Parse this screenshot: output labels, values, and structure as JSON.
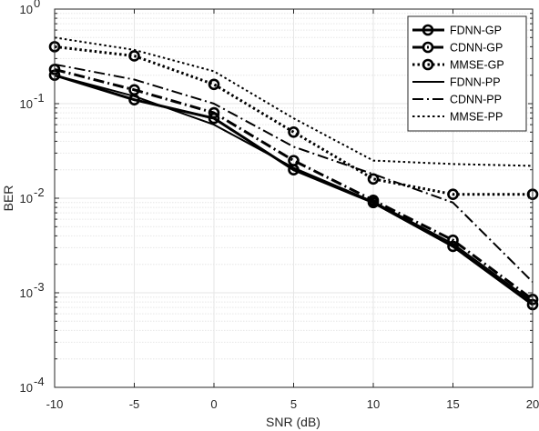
{
  "chart_data": {
    "type": "line",
    "xlabel": "SNR (dB)",
    "ylabel": "BER",
    "yscale": "log",
    "xlim": [
      -10,
      20
    ],
    "ylim": [
      0.0001,
      1
    ],
    "grid": true,
    "legend_placement": "top-right",
    "x": [
      -10,
      -5,
      0,
      5,
      10,
      15,
      20
    ],
    "x_tick_labels": [
      "-10",
      "-5",
      "0",
      "5",
      "10",
      "15",
      "20"
    ],
    "y_ticks": [
      {
        "mantissa": "10",
        "exponent": "0"
      },
      {
        "mantissa": "10",
        "exponent": "-1"
      },
      {
        "mantissa": "10",
        "exponent": "-2"
      },
      {
        "mantissa": "10",
        "exponent": "-3"
      },
      {
        "mantissa": "10",
        "exponent": "-4"
      }
    ],
    "series": [
      {
        "name": "FDNN-GP",
        "style": "solid",
        "width": 3,
        "marker": "circle",
        "values": [
          0.2,
          0.11,
          0.07,
          0.02,
          0.009,
          0.0031,
          0.00075
        ]
      },
      {
        "name": "CDNN-GP",
        "style": "dashdot",
        "width": 3,
        "marker": "circle",
        "values": [
          0.23,
          0.14,
          0.08,
          0.025,
          0.0095,
          0.0036,
          0.00085
        ]
      },
      {
        "name": "MMSE-GP",
        "style": "dotted",
        "width": 3,
        "marker": "circle",
        "values": [
          0.4,
          0.32,
          0.16,
          0.05,
          0.016,
          0.011,
          0.011
        ]
      },
      {
        "name": "FDNN-PP",
        "style": "solid",
        "width": 2,
        "marker": "none",
        "values": [
          0.2,
          0.12,
          0.06,
          0.021,
          0.0092,
          0.0033,
          0.0008
        ]
      },
      {
        "name": "CDNN-PP",
        "style": "dashdot",
        "width": 2,
        "marker": "none",
        "values": [
          0.26,
          0.18,
          0.1,
          0.035,
          0.018,
          0.009,
          0.0013
        ]
      },
      {
        "name": "MMSE-PP",
        "style": "dotted",
        "width": 2,
        "marker": "none",
        "values": [
          0.5,
          0.37,
          0.22,
          0.07,
          0.025,
          0.023,
          0.022
        ]
      }
    ],
    "colors": {
      "series": "#000000",
      "grid": "#e6e6e6",
      "axis": "#262626",
      "background": "#ffffff"
    }
  }
}
